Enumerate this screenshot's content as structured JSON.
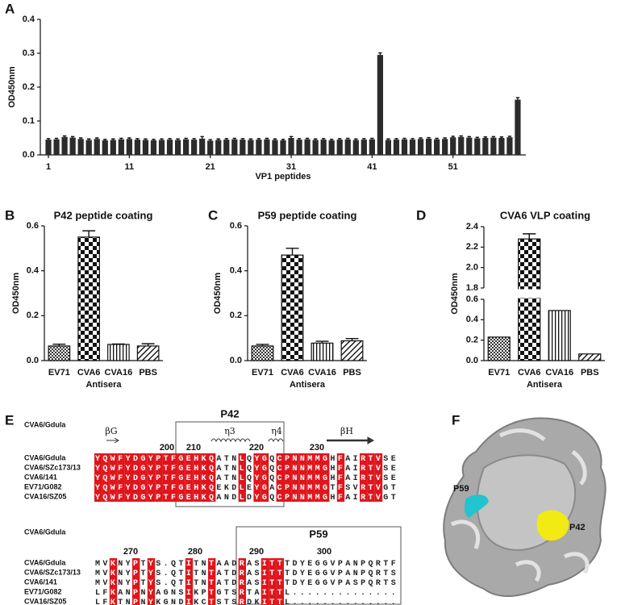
{
  "panel_labels": [
    "A",
    "B",
    "C",
    "D",
    "E",
    "F"
  ],
  "chart_data": [
    {
      "type": "bar",
      "x": [
        1,
        2,
        3,
        4,
        5,
        6,
        7,
        8,
        9,
        10,
        11,
        12,
        13,
        14,
        15,
        16,
        17,
        18,
        19,
        20,
        21,
        22,
        23,
        24,
        25,
        26,
        27,
        28,
        29,
        30,
        31,
        32,
        33,
        34,
        35,
        36,
        37,
        38,
        39,
        40,
        41,
        42,
        43,
        44,
        45,
        46,
        47,
        48,
        49,
        50,
        51,
        52,
        53,
        54,
        55,
        56,
        57,
        58,
        59
      ],
      "values": [
        0.045,
        0.046,
        0.053,
        0.051,
        0.047,
        0.044,
        0.047,
        0.043,
        0.044,
        0.046,
        0.047,
        0.045,
        0.044,
        0.043,
        0.044,
        0.045,
        0.044,
        0.046,
        0.045,
        0.048,
        0.042,
        0.044,
        0.045,
        0.046,
        0.045,
        0.044,
        0.045,
        0.046,
        0.044,
        0.043,
        0.05,
        0.045,
        0.046,
        0.044,
        0.045,
        0.043,
        0.045,
        0.046,
        0.044,
        0.045,
        0.046,
        0.295,
        0.044,
        0.045,
        0.046,
        0.045,
        0.047,
        0.048,
        0.046,
        0.047,
        0.052,
        0.053,
        0.051,
        0.049,
        0.05,
        0.051,
        0.05,
        0.052,
        0.163
      ],
      "errors": [
        0.003,
        0.003,
        0.003,
        0.003,
        0.003,
        0.003,
        0.003,
        0.003,
        0.003,
        0.003,
        0.003,
        0.003,
        0.003,
        0.003,
        0.003,
        0.003,
        0.003,
        0.003,
        0.003,
        0.006,
        0.003,
        0.003,
        0.003,
        0.003,
        0.003,
        0.003,
        0.003,
        0.003,
        0.003,
        0.003,
        0.004,
        0.003,
        0.003,
        0.003,
        0.003,
        0.003,
        0.003,
        0.003,
        0.003,
        0.003,
        0.003,
        0.006,
        0.003,
        0.003,
        0.003,
        0.003,
        0.003,
        0.003,
        0.003,
        0.003,
        0.003,
        0.003,
        0.003,
        0.003,
        0.003,
        0.003,
        0.003,
        0.003,
        0.006
      ],
      "color": "#2b2b2b",
      "xlabel": "VP1 peptides",
      "ylabel": "OD450nm",
      "xlim": [
        0,
        60
      ],
      "xticks": [
        1,
        11,
        21,
        31,
        41,
        51
      ],
      "ylim": [
        0,
        0.4
      ],
      "yticks": [
        {
          "value": 0,
          "label": "0.0"
        },
        0.1,
        0.2,
        0.3,
        0.4
      ]
    },
    {
      "type": "bar",
      "title": "P42 peptide coating",
      "categories": [
        "EV71",
        "CVA6",
        "CVA16",
        "PBS"
      ],
      "values": [
        0.065,
        0.55,
        0.072,
        0.065
      ],
      "errors": [
        0.008,
        0.028,
        0.002,
        0.01
      ],
      "xlabel": "Antisera",
      "ylabel": "OD450nm",
      "ylim": [
        0,
        0.6
      ],
      "yticks": [
        {
          "value": 0,
          "label": "0.0"
        },
        0.2,
        0.4,
        0.6
      ]
    },
    {
      "type": "bar",
      "title": "P59 peptide coating",
      "categories": [
        "EV71",
        "CVA6",
        "CVA16",
        "PBS"
      ],
      "values": [
        0.065,
        0.47,
        0.078,
        0.088
      ],
      "errors": [
        0.007,
        0.03,
        0.008,
        0.01
      ],
      "xlabel": "Antisera",
      "ylabel": "OD450nm",
      "ylim": [
        0,
        0.6
      ],
      "yticks": [
        {
          "value": 0,
          "label": "0.0"
        },
        0.2,
        0.4,
        0.6
      ]
    },
    {
      "type": "bar",
      "title": "CVA6 VLP coating",
      "categories": [
        "EV71",
        "CVA6",
        "CVA16",
        "PBS"
      ],
      "values": [
        0.23,
        2.28,
        0.49,
        0.065
      ],
      "errors": [
        0,
        0.05,
        0,
        0
      ],
      "xlabel": "Antisera",
      "ylabel": "OD450nm",
      "ylim": [
        0,
        2.4
      ],
      "axis_break": [
        0.6,
        1.8
      ],
      "yticks": [
        {
          "value": 0,
          "label": "0.0"
        },
        0.2,
        0.4,
        0.6,
        1.8,
        {
          "value": 2,
          "label": "2.0"
        },
        2.2,
        2.4
      ]
    }
  ],
  "alignment": {
    "blocks": [
      {
        "header": "CVA6/Gdula",
        "box_label": "P42",
        "structure": [
          "βG",
          "η3",
          "η4",
          "βH"
        ],
        "numbers": [
          200,
          210,
          220,
          230
        ],
        "rows": [
          {
            "name": "CVA6/Gdula",
            "sequence": "YQWFYDGYPTFGEHKQATNLQYGQCPNNMMGHFAIRTVSE"
          },
          {
            "name": "CVA6/SZc173/13",
            "sequence": "YQWFYDGYPTFGEHKQATNLQYGQCPNNMMGHFAIRTVSE"
          },
          {
            "name": "CVA6/141",
            "sequence": "YQWFYDGYPTFGEHKQATNLQYGQCPNNMMGHFAIRTVSE"
          },
          {
            "name": "EV71/G082",
            "sequence": "YQWFYDGYPTFGEHKQEKDLEYGACPNNMMGTFSVRTVGT"
          },
          {
            "name": "CVA16/SZ05",
            "sequence": "YQWFYDGYPTFGEHKQANDLDYGQCPNNMMGHFAIRTVGT"
          }
        ]
      },
      {
        "header": "CVA6/Gdula",
        "box_label": "P59",
        "numbers": [
          270,
          280,
          290,
          300
        ],
        "rows": [
          {
            "name": "CVA6/Gdula",
            "sequence": "MVKNYPTYS.QTITNTAADRASITTTDYEGGVPANPQRTF"
          },
          {
            "name": "CVA6/SZc173/13",
            "sequence": "MVKNYPTYS.QTITNTATDRASITTTDYEGGVPANPQRTS"
          },
          {
            "name": "CVA6/141",
            "sequence": "MVKNYPTYS.QTITNTATDRASITTTDYEGGVPASPQRTS"
          },
          {
            "name": "EV71/G082",
            "sequence": "LFKANPNYAGNSIKPTGTSRTAITTL.............."
          },
          {
            "name": "CVA16/SZ05",
            "sequence": "LFKTNPNYKGNDIKCTSTSRDKITTL.............."
          }
        ]
      }
    ]
  },
  "structure_image": {
    "labels": [
      "P59",
      "P42"
    ]
  }
}
